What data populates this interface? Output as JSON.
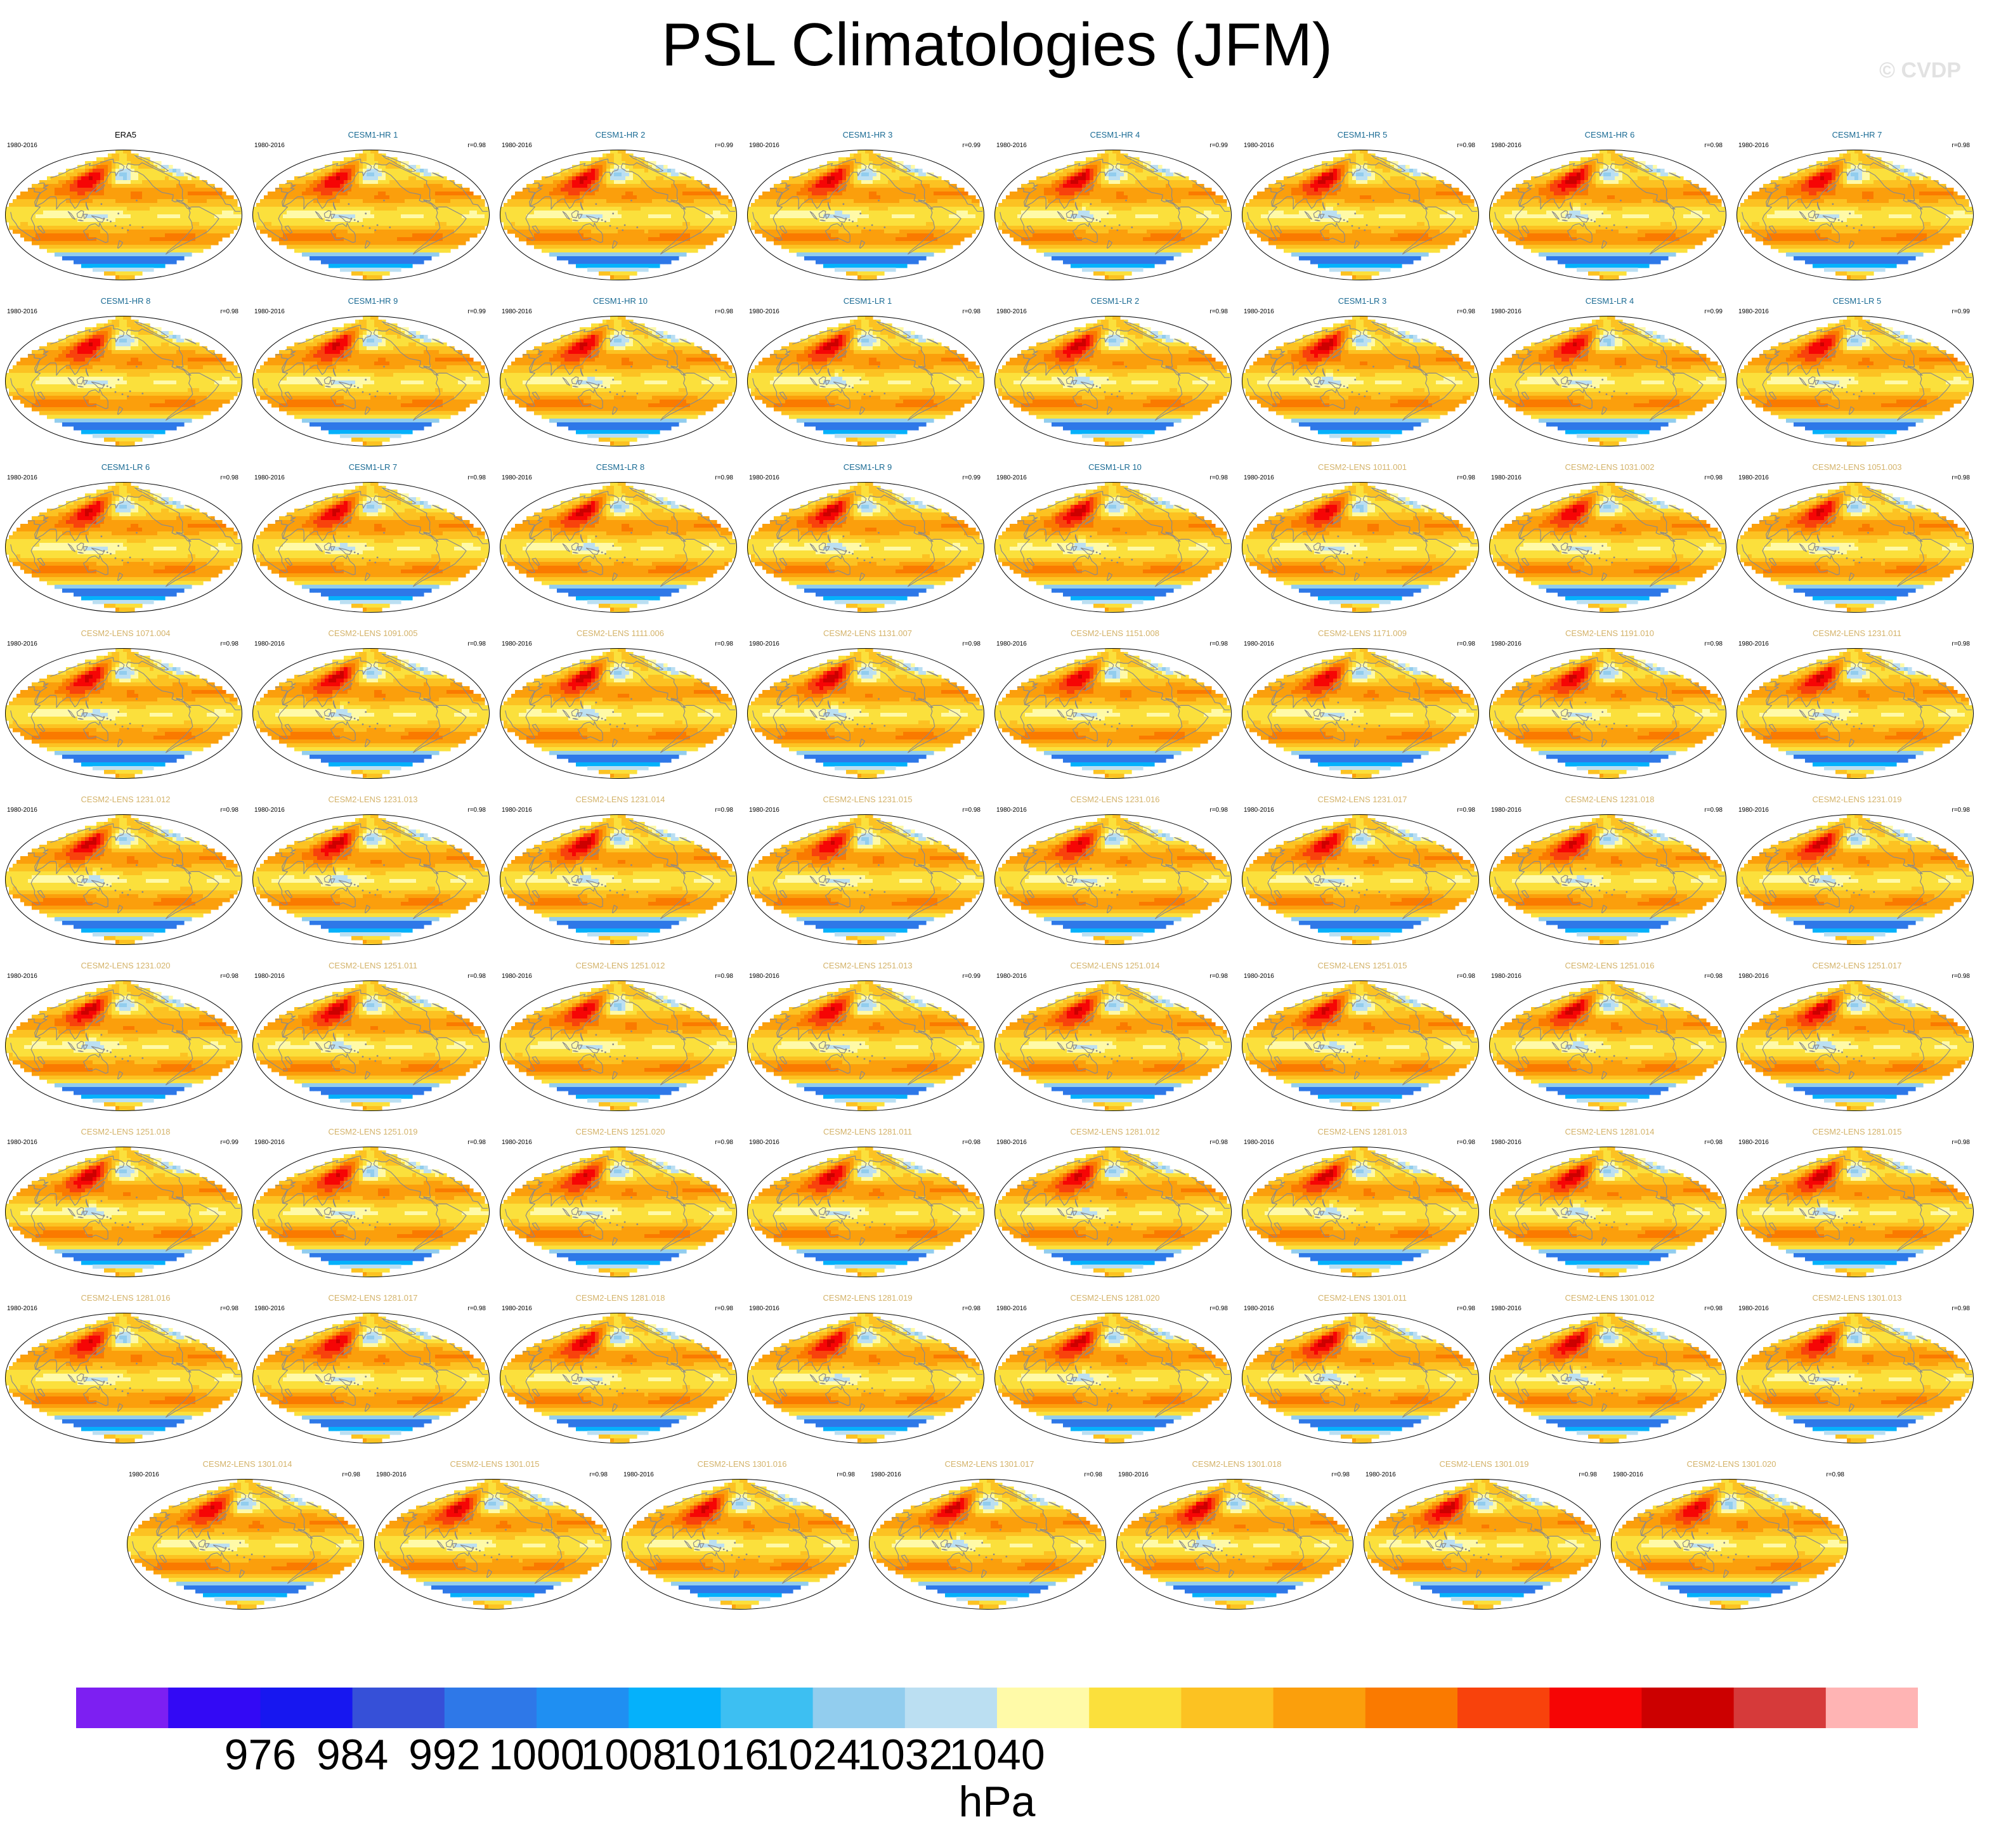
{
  "title": "PSL Climatologies (JFM)",
  "watermark": "© CVDP",
  "colors": {
    "observation": "#000000",
    "cesm1": "#1a6b94",
    "cesm2": "#d4b36a",
    "continent": "#8a8a8a"
  },
  "chart_data": {
    "type": "heatmap",
    "title": "PSL Climatologies (JFM)",
    "variable": "PSL",
    "season": "JFM",
    "units": "hPa",
    "period": "1980-2016",
    "panels": [
      {
        "title": "ERA5",
        "period": "1980-2016",
        "r": "",
        "group": "observation"
      },
      {
        "title": "CESM1-HR 1",
        "period": "1980-2016",
        "r": "r=0.98",
        "group": "cesm1"
      },
      {
        "title": "CESM1-HR 2",
        "period": "1980-2016",
        "r": "r=0.99",
        "group": "cesm1"
      },
      {
        "title": "CESM1-HR 3",
        "period": "1980-2016",
        "r": "r=0.99",
        "group": "cesm1"
      },
      {
        "title": "CESM1-HR 4",
        "period": "1980-2016",
        "r": "r=0.99",
        "group": "cesm1"
      },
      {
        "title": "CESM1-HR 5",
        "period": "1980-2016",
        "r": "r=0.98",
        "group": "cesm1"
      },
      {
        "title": "CESM1-HR 6",
        "period": "1980-2016",
        "r": "r=0.98",
        "group": "cesm1"
      },
      {
        "title": "CESM1-HR 7",
        "period": "1980-2016",
        "r": "r=0.98",
        "group": "cesm1"
      },
      {
        "title": "CESM1-HR 8",
        "period": "1980-2016",
        "r": "r=0.98",
        "group": "cesm1"
      },
      {
        "title": "CESM1-HR 9",
        "period": "1980-2016",
        "r": "r=0.99",
        "group": "cesm1"
      },
      {
        "title": "CESM1-HR 10",
        "period": "1980-2016",
        "r": "r=0.98",
        "group": "cesm1"
      },
      {
        "title": "CESM1-LR 1",
        "period": "1980-2016",
        "r": "r=0.98",
        "group": "cesm1"
      },
      {
        "title": "CESM1-LR 2",
        "period": "1980-2016",
        "r": "r=0.98",
        "group": "cesm1"
      },
      {
        "title": "CESM1-LR 3",
        "period": "1980-2016",
        "r": "r=0.98",
        "group": "cesm1"
      },
      {
        "title": "CESM1-LR 4",
        "period": "1980-2016",
        "r": "r=0.99",
        "group": "cesm1"
      },
      {
        "title": "CESM1-LR 5",
        "period": "1980-2016",
        "r": "r=0.99",
        "group": "cesm1"
      },
      {
        "title": "CESM1-LR 6",
        "period": "1980-2016",
        "r": "r=0.98",
        "group": "cesm1"
      },
      {
        "title": "CESM1-LR 7",
        "period": "1980-2016",
        "r": "r=0.98",
        "group": "cesm1"
      },
      {
        "title": "CESM1-LR 8",
        "period": "1980-2016",
        "r": "r=0.98",
        "group": "cesm1"
      },
      {
        "title": "CESM1-LR 9",
        "period": "1980-2016",
        "r": "r=0.99",
        "group": "cesm1"
      },
      {
        "title": "CESM1-LR 10",
        "period": "1980-2016",
        "r": "r=0.98",
        "group": "cesm1"
      },
      {
        "title": "CESM2-LENS 1011.001",
        "period": "1980-2016",
        "r": "r=0.98",
        "group": "cesm2"
      },
      {
        "title": "CESM2-LENS 1031.002",
        "period": "1980-2016",
        "r": "r=0.98",
        "group": "cesm2"
      },
      {
        "title": "CESM2-LENS 1051.003",
        "period": "1980-2016",
        "r": "r=0.98",
        "group": "cesm2"
      },
      {
        "title": "CESM2-LENS 1071.004",
        "period": "1980-2016",
        "r": "r=0.98",
        "group": "cesm2"
      },
      {
        "title": "CESM2-LENS 1091.005",
        "period": "1980-2016",
        "r": "r=0.98",
        "group": "cesm2"
      },
      {
        "title": "CESM2-LENS 1111.006",
        "period": "1980-2016",
        "r": "r=0.98",
        "group": "cesm2"
      },
      {
        "title": "CESM2-LENS 1131.007",
        "period": "1980-2016",
        "r": "r=0.98",
        "group": "cesm2"
      },
      {
        "title": "CESM2-LENS 1151.008",
        "period": "1980-2016",
        "r": "r=0.98",
        "group": "cesm2"
      },
      {
        "title": "CESM2-LENS 1171.009",
        "period": "1980-2016",
        "r": "r=0.98",
        "group": "cesm2"
      },
      {
        "title": "CESM2-LENS 1191.010",
        "period": "1980-2016",
        "r": "r=0.98",
        "group": "cesm2"
      },
      {
        "title": "CESM2-LENS 1231.011",
        "period": "1980-2016",
        "r": "r=0.98",
        "group": "cesm2"
      },
      {
        "title": "CESM2-LENS 1231.012",
        "period": "1980-2016",
        "r": "r=0.98",
        "group": "cesm2"
      },
      {
        "title": "CESM2-LENS 1231.013",
        "period": "1980-2016",
        "r": "r=0.98",
        "group": "cesm2"
      },
      {
        "title": "CESM2-LENS 1231.014",
        "period": "1980-2016",
        "r": "r=0.98",
        "group": "cesm2"
      },
      {
        "title": "CESM2-LENS 1231.015",
        "period": "1980-2016",
        "r": "r=0.98",
        "group": "cesm2"
      },
      {
        "title": "CESM2-LENS 1231.016",
        "period": "1980-2016",
        "r": "r=0.98",
        "group": "cesm2"
      },
      {
        "title": "CESM2-LENS 1231.017",
        "period": "1980-2016",
        "r": "r=0.98",
        "group": "cesm2"
      },
      {
        "title": "CESM2-LENS 1231.018",
        "period": "1980-2016",
        "r": "r=0.98",
        "group": "cesm2"
      },
      {
        "title": "CESM2-LENS 1231.019",
        "period": "1980-2016",
        "r": "r=0.98",
        "group": "cesm2"
      },
      {
        "title": "CESM2-LENS 1231.020",
        "period": "1980-2016",
        "r": "r=0.98",
        "group": "cesm2"
      },
      {
        "title": "CESM2-LENS 1251.011",
        "period": "1980-2016",
        "r": "r=0.98",
        "group": "cesm2"
      },
      {
        "title": "CESM2-LENS 1251.012",
        "period": "1980-2016",
        "r": "r=0.98",
        "group": "cesm2"
      },
      {
        "title": "CESM2-LENS 1251.013",
        "period": "1980-2016",
        "r": "r=0.99",
        "group": "cesm2"
      },
      {
        "title": "CESM2-LENS 1251.014",
        "period": "1980-2016",
        "r": "r=0.98",
        "group": "cesm2"
      },
      {
        "title": "CESM2-LENS 1251.015",
        "period": "1980-2016",
        "r": "r=0.98",
        "group": "cesm2"
      },
      {
        "title": "CESM2-LENS 1251.016",
        "period": "1980-2016",
        "r": "r=0.98",
        "group": "cesm2"
      },
      {
        "title": "CESM2-LENS 1251.017",
        "period": "1980-2016",
        "r": "r=0.98",
        "group": "cesm2"
      },
      {
        "title": "CESM2-LENS 1251.018",
        "period": "1980-2016",
        "r": "r=0.99",
        "group": "cesm2"
      },
      {
        "title": "CESM2-LENS 1251.019",
        "period": "1980-2016",
        "r": "r=0.98",
        "group": "cesm2"
      },
      {
        "title": "CESM2-LENS 1251.020",
        "period": "1980-2016",
        "r": "r=0.98",
        "group": "cesm2"
      },
      {
        "title": "CESM2-LENS 1281.011",
        "period": "1980-2016",
        "r": "r=0.98",
        "group": "cesm2"
      },
      {
        "title": "CESM2-LENS 1281.012",
        "period": "1980-2016",
        "r": "r=0.98",
        "group": "cesm2"
      },
      {
        "title": "CESM2-LENS 1281.013",
        "period": "1980-2016",
        "r": "r=0.98",
        "group": "cesm2"
      },
      {
        "title": "CESM2-LENS 1281.014",
        "period": "1980-2016",
        "r": "r=0.98",
        "group": "cesm2"
      },
      {
        "title": "CESM2-LENS 1281.015",
        "period": "1980-2016",
        "r": "r=0.98",
        "group": "cesm2"
      },
      {
        "title": "CESM2-LENS 1281.016",
        "period": "1980-2016",
        "r": "r=0.98",
        "group": "cesm2"
      },
      {
        "title": "CESM2-LENS 1281.017",
        "period": "1980-2016",
        "r": "r=0.98",
        "group": "cesm2"
      },
      {
        "title": "CESM2-LENS 1281.018",
        "period": "1980-2016",
        "r": "r=0.98",
        "group": "cesm2"
      },
      {
        "title": "CESM2-LENS 1281.019",
        "period": "1980-2016",
        "r": "r=0.98",
        "group": "cesm2"
      },
      {
        "title": "CESM2-LENS 1281.020",
        "period": "1980-2016",
        "r": "r=0.98",
        "group": "cesm2"
      },
      {
        "title": "CESM2-LENS 1301.011",
        "period": "1980-2016",
        "r": "r=0.98",
        "group": "cesm2"
      },
      {
        "title": "CESM2-LENS 1301.012",
        "period": "1980-2016",
        "r": "r=0.98",
        "group": "cesm2"
      },
      {
        "title": "CESM2-LENS 1301.013",
        "period": "1980-2016",
        "r": "r=0.98",
        "group": "cesm2"
      },
      {
        "title": "CESM2-LENS 1301.014",
        "period": "1980-2016",
        "r": "r=0.98",
        "group": "cesm2"
      },
      {
        "title": "CESM2-LENS 1301.015",
        "period": "1980-2016",
        "r": "r=0.98",
        "group": "cesm2"
      },
      {
        "title": "CESM2-LENS 1301.016",
        "period": "1980-2016",
        "r": "r=0.98",
        "group": "cesm2"
      },
      {
        "title": "CESM2-LENS 1301.017",
        "period": "1980-2016",
        "r": "r=0.98",
        "group": "cesm2"
      },
      {
        "title": "CESM2-LENS 1301.018",
        "period": "1980-2016",
        "r": "r=0.98",
        "group": "cesm2"
      },
      {
        "title": "CESM2-LENS 1301.019",
        "period": "1980-2016",
        "r": "r=0.98",
        "group": "cesm2"
      },
      {
        "title": "CESM2-LENS 1301.020",
        "period": "1980-2016",
        "r": "r=0.98",
        "group": "cesm2"
      }
    ],
    "colorbar": {
      "label": "hPa",
      "tick_labels": [
        "976",
        "984",
        "992",
        "1000",
        "1008",
        "1016",
        "1024",
        "1032",
        "1040"
      ],
      "colors": [
        "#7d1ff2",
        "#3309f5",
        "#1717f0",
        "#3650d8",
        "#2e78e8",
        "#1f8ff2",
        "#05b1fb",
        "#3dbff2",
        "#92cdee",
        "#bbdff2",
        "#fffaa8",
        "#fbe03c",
        "#fcc222",
        "#fb9f0c",
        "#fa7a00",
        "#f8420c",
        "#f60505",
        "#cc0000",
        "#d63a3a",
        "#ffb4b4"
      ]
    }
  }
}
